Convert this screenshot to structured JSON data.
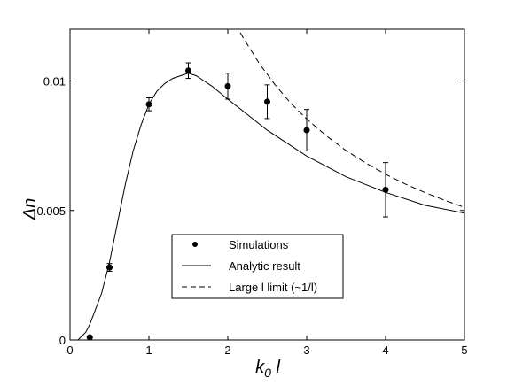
{
  "chart_data": {
    "type": "scatter",
    "xlabel": "k0 l",
    "ylabel": "Δn",
    "xlim": [
      0,
      5
    ],
    "ylim": [
      0,
      0.012
    ],
    "x_ticks": [
      "0",
      "1",
      "2",
      "3",
      "4",
      "5"
    ],
    "y_ticks": [
      "0",
      "0.005",
      "0.01"
    ],
    "grid": false,
    "legend_placement": "lower-center",
    "series": [
      {
        "name": "Simulations",
        "kind": "points-with-error-bars",
        "x": [
          0.25,
          0.5,
          1.0,
          1.5,
          2.0,
          2.5,
          3.0,
          4.0
        ],
        "y": [
          0.0001,
          0.0028,
          0.0091,
          0.0104,
          0.0098,
          0.0092,
          0.0081,
          0.0058
        ],
        "yerr": [
          5e-05,
          0.00015,
          0.00025,
          0.0003,
          0.0005,
          0.00065,
          0.0008,
          0.00105
        ]
      },
      {
        "name": "Analytic result",
        "kind": "solid-line",
        "x": [
          0.0,
          0.1,
          0.2,
          0.25,
          0.3,
          0.4,
          0.5,
          0.6,
          0.7,
          0.8,
          0.9,
          1.0,
          1.1,
          1.2,
          1.3,
          1.4,
          1.5,
          1.6,
          1.7,
          1.8,
          2.0,
          2.25,
          2.5,
          2.75,
          3.0,
          3.5,
          4.0,
          4.5,
          5.0
        ],
        "y": [
          0.0,
          0.0,
          0.0003,
          0.0006,
          0.001,
          0.0018,
          0.003,
          0.0045,
          0.006,
          0.0073,
          0.0083,
          0.0091,
          0.0096,
          0.0099,
          0.0101,
          0.0102,
          0.0103,
          0.0102,
          0.01,
          0.0098,
          0.0093,
          0.0087,
          0.0081,
          0.0076,
          0.0071,
          0.0063,
          0.0057,
          0.0052,
          0.0049
        ]
      },
      {
        "name": "Large l limit (~1/l)",
        "kind": "dashed-line",
        "x": [
          2.1,
          2.2,
          2.4,
          2.6,
          2.8,
          3.0,
          3.25,
          3.5,
          3.75,
          4.0,
          4.25,
          4.5,
          4.75,
          5.0
        ],
        "y": [
          0.0122,
          0.01164,
          0.01067,
          0.00985,
          0.00914,
          0.00853,
          0.00788,
          0.00731,
          0.00683,
          0.0064,
          0.00602,
          0.00569,
          0.00539,
          0.00512
        ]
      }
    ],
    "legend": [
      {
        "label": "Simulations",
        "marker": "dot"
      },
      {
        "label": "Analytic result",
        "marker": "solid"
      },
      {
        "label": "Large l limit (~1/l)",
        "marker": "dashed"
      }
    ]
  }
}
